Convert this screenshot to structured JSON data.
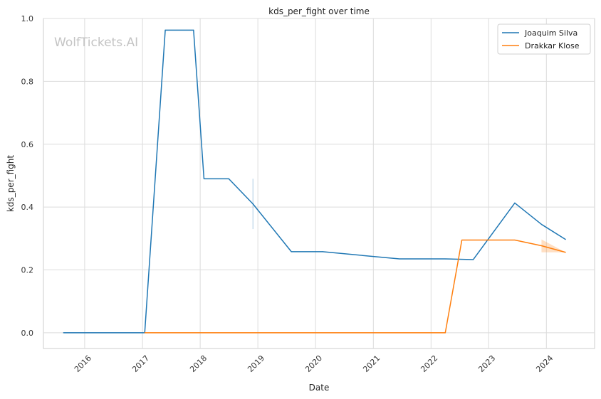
{
  "chart_data": {
    "type": "line",
    "title": "kds_per_fight over time",
    "xlabel": "Date",
    "ylabel": "kds_per_fight",
    "watermark": "WolfTickets.AI",
    "x_axis_type": "date",
    "xlim": [
      "2015-04-15",
      "2024-11-01"
    ],
    "ylim": [
      -0.05,
      1.0
    ],
    "x_ticks": [
      {
        "date": "2016-01-01",
        "label": "2016"
      },
      {
        "date": "2017-01-01",
        "label": "2017"
      },
      {
        "date": "2018-01-01",
        "label": "2018"
      },
      {
        "date": "2019-01-01",
        "label": "2019"
      },
      {
        "date": "2020-01-01",
        "label": "2020"
      },
      {
        "date": "2021-01-01",
        "label": "2021"
      },
      {
        "date": "2022-01-01",
        "label": "2022"
      },
      {
        "date": "2023-01-01",
        "label": "2023"
      },
      {
        "date": "2024-01-01",
        "label": "2024"
      }
    ],
    "y_ticks": [
      {
        "value": 0.0,
        "label": "0.0"
      },
      {
        "value": 0.2,
        "label": "0.2"
      },
      {
        "value": 0.4,
        "label": "0.4"
      },
      {
        "value": 0.6,
        "label": "0.6"
      },
      {
        "value": 0.8,
        "label": "0.8"
      },
      {
        "value": 1.0,
        "label": "1.0"
      }
    ],
    "grid": true,
    "legend_position": "top-right",
    "series": [
      {
        "name": "Joaquim Silva",
        "color": "#1f77b4",
        "points": [
          {
            "x": "2015-08-20",
            "y": 0.0
          },
          {
            "x": "2017-01-15",
            "y": 0.0
          },
          {
            "x": "2017-05-25",
            "y": 0.963
          },
          {
            "x": "2017-11-20",
            "y": 0.963
          },
          {
            "x": "2018-01-25",
            "y": 0.49
          },
          {
            "x": "2018-07-01",
            "y": 0.49
          },
          {
            "x": "2018-12-01",
            "y": 0.41
          },
          {
            "x": "2019-08-01",
            "y": 0.258
          },
          {
            "x": "2020-02-15",
            "y": 0.258
          },
          {
            "x": "2021-06-15",
            "y": 0.235
          },
          {
            "x": "2022-04-01",
            "y": 0.235
          },
          {
            "x": "2022-09-25",
            "y": 0.233
          },
          {
            "x": "2023-06-15",
            "y": 0.413
          },
          {
            "x": "2023-12-01",
            "y": 0.345
          },
          {
            "x": "2024-05-01",
            "y": 0.297
          }
        ],
        "error_band": [
          {
            "x": "2018-12-01",
            "low": 0.33,
            "high": 0.49
          }
        ]
      },
      {
        "name": "Drakkar Klose",
        "color": "#ff7f0e",
        "points": [
          {
            "x": "2017-01-15",
            "y": 0.0
          },
          {
            "x": "2022-04-01",
            "y": 0.0
          },
          {
            "x": "2022-07-15",
            "y": 0.295
          },
          {
            "x": "2023-06-15",
            "y": 0.295
          },
          {
            "x": "2023-12-01",
            "y": 0.277
          },
          {
            "x": "2024-05-01",
            "y": 0.256
          }
        ],
        "error_band": [
          {
            "x": "2023-12-01",
            "low": 0.256,
            "high": 0.297
          },
          {
            "x": "2024-05-01",
            "low": 0.256,
            "high": 0.256
          }
        ]
      }
    ]
  }
}
